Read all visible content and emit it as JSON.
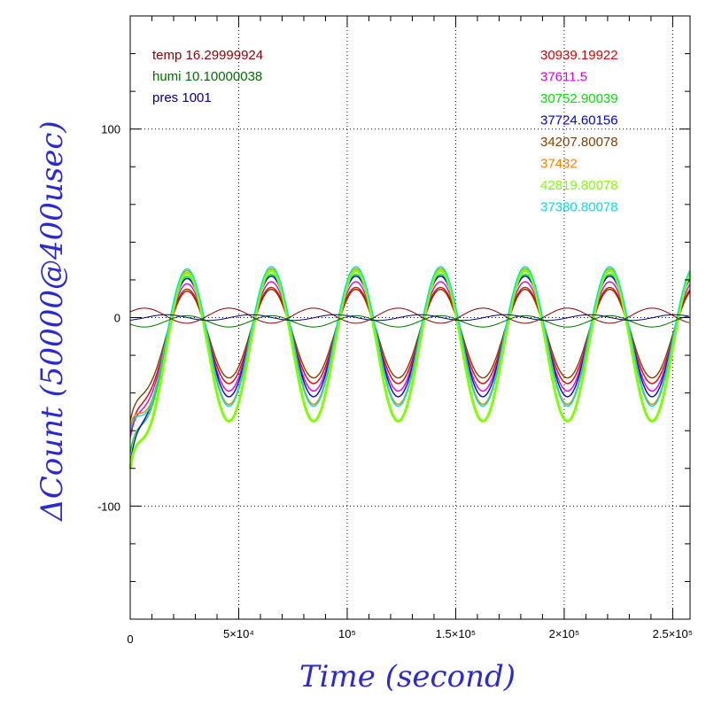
{
  "chart_data": {
    "type": "line",
    "xlabel": "Time (second)",
    "ylabel": "ΔCount (50000@400usec)",
    "xlim": [
      0,
      258000
    ],
    "ylim": [
      -160,
      160
    ],
    "x_ticks": [
      {
        "value": 0,
        "label": "0"
      },
      {
        "value": 50000,
        "label": "5×10⁴"
      },
      {
        "value": 100000,
        "label": "10⁵"
      },
      {
        "value": 150000,
        "label": "1.5×10⁵"
      },
      {
        "value": 200000,
        "label": "2×10⁵"
      },
      {
        "value": 250000,
        "label": "2.5×10⁵"
      }
    ],
    "y_ticks": [
      {
        "value": -100,
        "label": "-100"
      },
      {
        "value": 0,
        "label": "0"
      },
      {
        "value": 100,
        "label": "100"
      }
    ],
    "grid": true,
    "env_legend": [
      {
        "label": "temp 16.29999924",
        "color": "#8b0000"
      },
      {
        "label": "humi 10.10000038",
        "color": "#007000"
      },
      {
        "label": "pres 1001",
        "color": "#000080"
      }
    ],
    "series": [
      {
        "name": "30939.19922",
        "color": "#e00000",
        "amplitude": 25,
        "offset": -10,
        "start": -62
      },
      {
        "name": "37611.5",
        "color": "#e000e0",
        "amplitude": 29,
        "offset": -10,
        "start": -64
      },
      {
        "name": "30752.90039",
        "color": "#00e000",
        "amplitude": 35,
        "offset": -12,
        "start": -72
      },
      {
        "name": "37724.60156",
        "color": "#0000e0",
        "amplitude": 32,
        "offset": -10,
        "start": -78
      },
      {
        "name": "34207.80078",
        "color": "#804000",
        "amplitude": 24,
        "offset": -8,
        "start": -55
      },
      {
        "name": "37432",
        "color": "#ff8000",
        "amplitude": 36,
        "offset": -10,
        "start": -58
      },
      {
        "name": "42819.80078",
        "color": "#80ff00",
        "amplitude": 40,
        "offset": -15,
        "start": -80
      },
      {
        "name": "37380.80078",
        "color": "#00e0e0",
        "amplitude": 37,
        "offset": -10,
        "start": -60
      }
    ],
    "env_series": [
      {
        "name": "temp",
        "color": "#8b0000",
        "amplitude": 4,
        "offset": 1,
        "phase": 3.14
      },
      {
        "name": "humi",
        "color": "#007000",
        "amplitude": 3,
        "offset": -2,
        "phase": 0
      },
      {
        "name": "pres",
        "color": "#000080",
        "amplitude": 1.5,
        "offset": 0,
        "phase": 1.5
      }
    ],
    "period": 39000,
    "peak_x": 26000
  }
}
